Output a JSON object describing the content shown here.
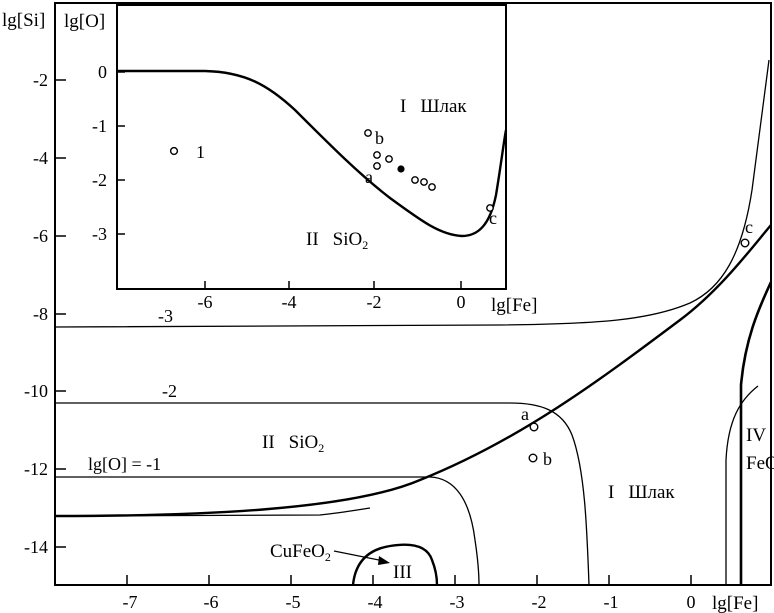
{
  "main": {
    "y_axis_label": "lg[Si]",
    "x_axis_label": "lg[Fe]",
    "y_ticks": [
      "-2",
      "-4",
      "-6",
      "-8",
      "-10",
      "-12",
      "-14"
    ],
    "x_ticks": [
      "-7",
      "-6",
      "-5",
      "-4",
      "-3",
      "-2",
      "-1",
      "0"
    ],
    "iso_labels": [
      "-3",
      "-2",
      "lg[O] = -1"
    ],
    "regions": {
      "slag_num": "I",
      "slag_name": "Шлак",
      "sio2_num": "II",
      "sio2_name": "SiO",
      "sio2_sub": "2",
      "fe_num": "IV",
      "fe_name": "FeO",
      "cu_num": "III",
      "cu_name": "CuFeO",
      "cu_sub": "2"
    },
    "points": [
      "a",
      "b",
      "c"
    ]
  },
  "inset": {
    "y_axis_label": "lg[O]",
    "x_axis_label": "lg[Fe]",
    "y_ticks": [
      "0",
      "-1",
      "-2",
      "-3"
    ],
    "x_ticks": [
      "-6",
      "-4",
      "-2",
      "0"
    ],
    "regions": {
      "slag_num": "I",
      "slag_name": "Шлак",
      "sio2_num": "II",
      "sio2_name": "SiO",
      "sio2_sub": "2"
    },
    "points": [
      "1",
      "a",
      "b",
      "c"
    ]
  }
}
